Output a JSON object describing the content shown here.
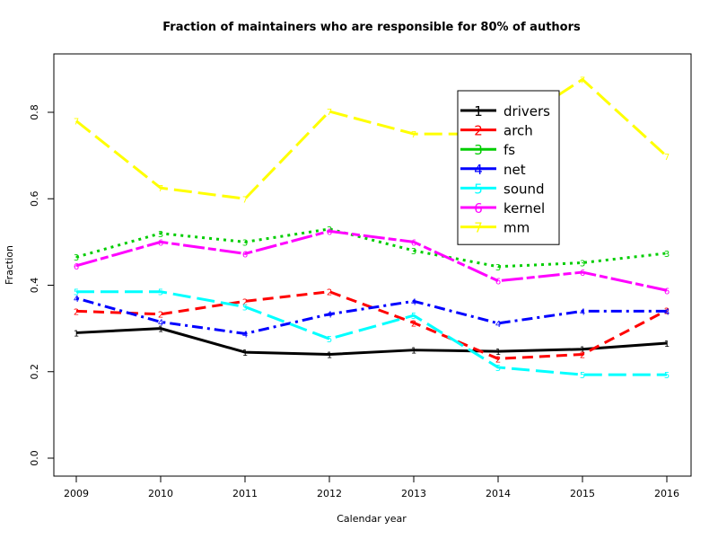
{
  "chart_data": {
    "type": "line",
    "title": "Fraction of maintainers who are responsible for 80% of authors",
    "xlabel": "Calendar year",
    "ylabel": "Fraction",
    "x": [
      2009,
      2010,
      2011,
      2012,
      2013,
      2014,
      2015,
      2016
    ],
    "xlim": [
      2009,
      2016
    ],
    "ylim": [
      0,
      0.9
    ],
    "yticks": [
      0.0,
      0.2,
      0.4,
      0.6,
      0.8
    ],
    "ytick_labels": [
      "0.0",
      "0.2",
      "0.4",
      "0.6",
      "0.8"
    ],
    "xtick_labels": [
      "2009",
      "2010",
      "2011",
      "2012",
      "2013",
      "2014",
      "2015",
      "2016"
    ],
    "legend_position": "top-right",
    "series": [
      {
        "name": "drivers",
        "marker": "1",
        "color": "#000000",
        "lty": "solid",
        "values": [
          0.29,
          0.3,
          0.245,
          0.24,
          0.25,
          0.247,
          0.252,
          0.266
        ]
      },
      {
        "name": "arch",
        "marker": "2",
        "color": "#ff0000",
        "lty": "dashed",
        "values": [
          0.34,
          0.333,
          0.363,
          0.385,
          0.313,
          0.23,
          0.24,
          0.342
        ]
      },
      {
        "name": "fs",
        "marker": "3",
        "color": "#00cd00",
        "lty": "dotted",
        "values": [
          0.465,
          0.52,
          0.5,
          0.53,
          0.48,
          0.443,
          0.452,
          0.474
        ]
      },
      {
        "name": "net",
        "marker": "4",
        "color": "#0000ff",
        "lty": "dotdash",
        "values": [
          0.37,
          0.315,
          0.288,
          0.333,
          0.363,
          0.312,
          0.34,
          0.34
        ]
      },
      {
        "name": "sound",
        "marker": "5",
        "color": "#00ffff",
        "lty": "longdash",
        "values": [
          0.385,
          0.385,
          0.35,
          0.276,
          0.33,
          0.21,
          0.193,
          0.193
        ]
      },
      {
        "name": "kernel",
        "marker": "6",
        "color": "#ff00ff",
        "lty": "twodash",
        "values": [
          0.445,
          0.5,
          0.473,
          0.525,
          0.5,
          0.41,
          0.43,
          0.388
        ]
      },
      {
        "name": "mm",
        "marker": "7",
        "color": "#ffff00",
        "lty": "longdash",
        "values": [
          0.78,
          0.625,
          0.6,
          0.802,
          0.75,
          0.75,
          0.876,
          0.698
        ]
      }
    ]
  }
}
